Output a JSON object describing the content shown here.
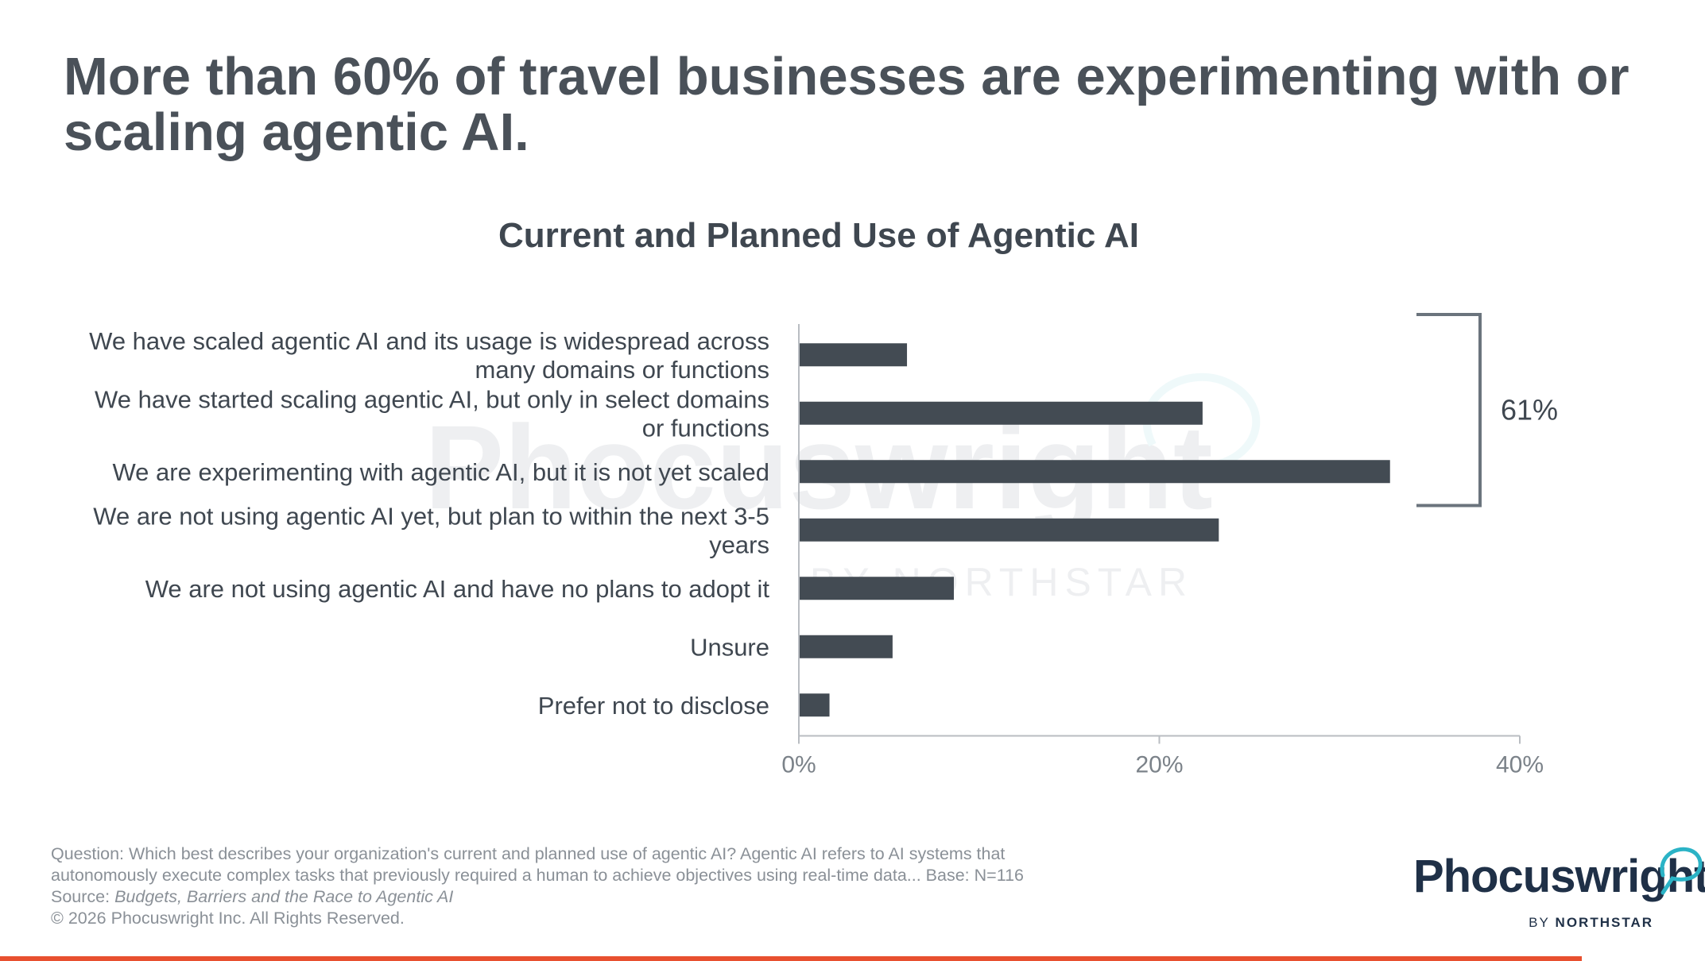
{
  "headline": "More than 60% of travel businesses are experimenting with or scaling agentic AI.",
  "watermark": {
    "brand": "Phocuswright",
    "sub": "BY NORTHSTAR"
  },
  "chart_data": {
    "type": "bar",
    "orientation": "horizontal",
    "title": "Current and Planned Use of Agentic AI",
    "categories": [
      "We have scaled agentic AI and its usage is widespread across many domains or functions",
      "We have started scaling agentic AI, but only in select domains or functions",
      "We are experimenting with agentic AI, but it is not yet scaled",
      "We are not using agentic AI yet, but plan to within the next 3-5 years",
      "We are not using agentic AI and have no plans to adopt it",
      "Unsure",
      "Prefer not to disclose"
    ],
    "category_lines": [
      [
        "We have scaled agentic AI and its usage is widespread across",
        "many domains or functions"
      ],
      [
        "We have started scaling agentic AI, but only in select domains",
        "or functions"
      ],
      [
        "We are experimenting with agentic AI, but it is not yet scaled"
      ],
      [
        "We are not using agentic AI yet, but plan to within the next 3-5",
        "years"
      ],
      [
        "We are not using agentic AI and have no plans to adopt it"
      ],
      [
        "Unsure"
      ],
      [
        "Prefer not to disclose"
      ]
    ],
    "values": [
      6,
      22.4,
      32.8,
      23.3,
      8.6,
      5.2,
      1.7
    ],
    "xlim": [
      0,
      40
    ],
    "xticks": [
      0,
      20,
      40
    ],
    "xtick_labels": [
      "0%",
      "20%",
      "40%"
    ],
    "bar_color": "#434b53",
    "grid": false,
    "bracket": {
      "covers_categories": [
        0,
        1,
        2
      ],
      "label": "61%"
    }
  },
  "footnote": {
    "question_line1": "Question: Which best describes your organization's current and planned use of agentic AI? Agentic AI refers to AI systems that",
    "question_line2": "autonomously execute complex tasks that previously required a human to achieve objectives using real-time data... Base: N=116",
    "source_prefix": "Source: ",
    "source_title": "Budgets, Barriers and the Race to Agentic AI",
    "copyright": "© 2026 Phocuswright Inc. All Rights Reserved."
  },
  "logo": {
    "word": "Phocuswright",
    "by": "BY",
    "northstar": "NORTHSTAR"
  },
  "colors": {
    "accent": "#e8502f",
    "logo_navy": "#1f3047",
    "logo_teal": "#2bb3c6"
  }
}
